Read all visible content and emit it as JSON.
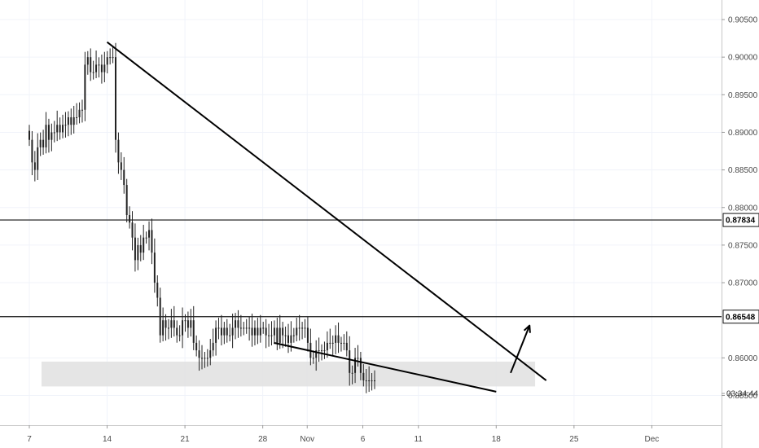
{
  "chart_data": {
    "type": "candlestick",
    "y_range": [
      0.8512,
      0.9078
    ],
    "x_domain_days": "Oct 7 – Dec 6",
    "x_ticks": [
      {
        "label": "7",
        "day": 0
      },
      {
        "label": "14",
        "day": 7
      },
      {
        "label": "21",
        "day": 14
      },
      {
        "label": "28",
        "day": 21
      },
      {
        "label": "Nov",
        "day": 25
      },
      {
        "label": "6",
        "day": 30
      },
      {
        "label": "11",
        "day": 35
      },
      {
        "label": "18",
        "day": 42
      },
      {
        "label": "25",
        "day": 49
      },
      {
        "label": "Dec",
        "day": 56
      }
    ],
    "y_ticks": [
      "0.90500",
      "0.90000",
      "0.89500",
      "0.89000",
      "0.88500",
      "0.88000",
      "0.87500",
      "0.87000",
      "0.86000",
      "0.85500"
    ],
    "horizontal_levels": [
      {
        "value": 0.87834,
        "label": "0.87834"
      },
      {
        "value": 0.86548,
        "label": "0.86548"
      }
    ],
    "countdown_label": "03:34:44",
    "support_zone": {
      "from_day": 1.1,
      "to_day": 45.5,
      "low": 0.8562,
      "high": 0.8595
    },
    "trendlines": [
      {
        "name": "descending resistance",
        "start": {
          "day": 7.0,
          "price": 0.902
        },
        "end": {
          "day": 46.5,
          "price": 0.857
        }
      },
      {
        "name": "descending support",
        "start": {
          "day": 22.0,
          "price": 0.862
        },
        "end": {
          "day": 42.0,
          "price": 0.8555
        }
      }
    ],
    "projection_arrow": {
      "start": {
        "day": 43.3,
        "price": 0.858
      },
      "end": {
        "day": 45.0,
        "price": 0.8643
      }
    },
    "candle_series": {
      "start_day": 0,
      "step_days": 0.2505,
      "closes": [
        0.889,
        0.886,
        0.885,
        0.888,
        0.889,
        0.888,
        0.891,
        0.889,
        0.89,
        0.89,
        0.891,
        0.89,
        0.891,
        0.891,
        0.892,
        0.891,
        0.892,
        0.892,
        0.893,
        0.893,
        0.899,
        0.9,
        0.898,
        0.898,
        0.899,
        0.899,
        0.898,
        0.899,
        0.9,
        0.9,
        0.9,
        0.889,
        0.886,
        0.885,
        0.883,
        0.879,
        0.878,
        0.876,
        0.873,
        0.875,
        0.874,
        0.876,
        0.876,
        0.877,
        0.874,
        0.87,
        0.868,
        0.863,
        0.865,
        0.864,
        0.864,
        0.865,
        0.864,
        0.863,
        0.863,
        0.865,
        0.865,
        0.864,
        0.865,
        0.862,
        0.861,
        0.86,
        0.86,
        0.86,
        0.86,
        0.861,
        0.862,
        0.864,
        0.864,
        0.863,
        0.864,
        0.863,
        0.863,
        0.864,
        0.865,
        0.864,
        0.864,
        0.864,
        0.864,
        0.864,
        0.863,
        0.864,
        0.863,
        0.864,
        0.864,
        0.863,
        0.863,
        0.863,
        0.864,
        0.862,
        0.864,
        0.863,
        0.863,
        0.862,
        0.863,
        0.863,
        0.864,
        0.864,
        0.864,
        0.864,
        0.862,
        0.86,
        0.86,
        0.861,
        0.861,
        0.861,
        0.861,
        0.862,
        0.862,
        0.862,
        0.863,
        0.862,
        0.862,
        0.862,
        0.861,
        0.858,
        0.858,
        0.86,
        0.86,
        0.858,
        0.857,
        0.857,
        0.857,
        0.857,
        0.857
      ]
    }
  }
}
